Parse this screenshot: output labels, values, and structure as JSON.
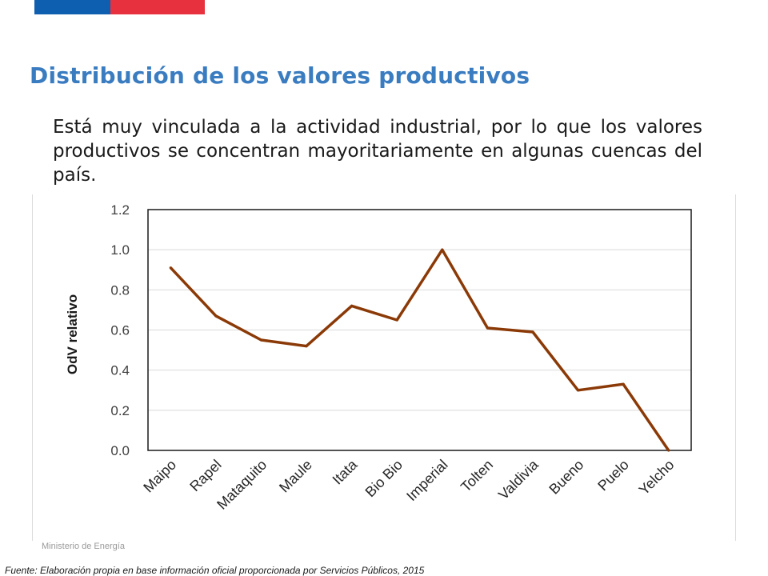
{
  "slide": {
    "title": "Distribución de los valores productivos",
    "intro": "Está muy vinculada a la actividad industrial, por lo que los valores productivos se concentran mayoritariamente en algunas cuencas del país.",
    "footer_org": "Ministerio de Energía",
    "source": "Fuente: Elaboración propia en base información oficial proporcionada por Servicios Públicos, 2015"
  },
  "colors": {
    "flag_blue": "#0f5fb0",
    "flag_red": "#e8313f",
    "title": "#3a7cc0",
    "series_line": "#8b3a07"
  },
  "chart_data": {
    "type": "line",
    "title": "",
    "xlabel": "",
    "ylabel": "OdV relativo",
    "ylim": [
      0,
      1.2
    ],
    "yticks": [
      "0.0",
      "0.2",
      "0.4",
      "0.6",
      "0.8",
      "1.0",
      "1.2"
    ],
    "grid": true,
    "legend": "none",
    "categories": [
      "Maipo",
      "Rapel",
      "Mataquito",
      "Maule",
      "Itata",
      "Bio Bio",
      "Imperial",
      "Tolten",
      "Valdivia",
      "Bueno",
      "Puelo",
      "Yelcho"
    ],
    "series": [
      {
        "values": [
          0.91,
          0.67,
          0.55,
          0.52,
          0.72,
          0.65,
          1.0,
          0.61,
          0.59,
          0.3,
          0.33,
          0.0
        ]
      }
    ]
  }
}
